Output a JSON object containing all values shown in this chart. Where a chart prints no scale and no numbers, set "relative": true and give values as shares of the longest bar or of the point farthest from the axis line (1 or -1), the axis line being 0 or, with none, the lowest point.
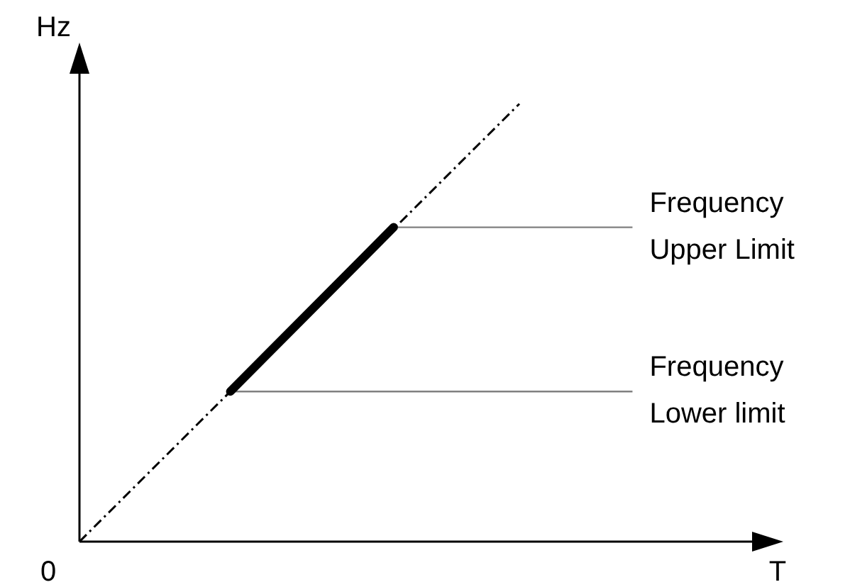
{
  "chart_data": {
    "type": "line",
    "relative": true,
    "xlabel": "T",
    "ylabel": "Hz",
    "marker": "none",
    "categories": [
      null,
      null,
      null,
      null,
      null,
      null,
      null,
      null,
      null,
      null,
      null,
      null,
      null,
      null,
      null,
      null,
      null,
      null,
      null,
      null,
      null,
      null,
      null,
      null,
      null,
      null,
      null,
      null,
      null,
      null,
      null,
      null,
      null,
      null,
      null,
      null,
      null,
      null,
      null,
      null,
      null,
      null,
      null,
      null,
      null,
      null,
      null,
      null,
      null,
      null,
      null,
      null,
      null,
      null,
      null,
      null,
      null
    ],
    "series": [
      {
        "color": "#000000",
        "line_style": "dashed",
        "values": [
          0,
          null,
          null,
          null,
          null,
          null,
          null,
          null,
          null,
          null,
          null,
          null,
          null,
          null,
          null,
          null,
          null,
          null,
          null,
          null,
          null,
          null,
          null,
          null,
          null,
          null,
          null,
          null,
          null,
          null,
          null,
          null,
          null,
          null,
          null,
          1,
          null,
          null,
          null,
          null,
          null,
          null,
          null,
          null,
          null,
          null,
          null,
          null,
          null,
          null,
          null,
          null,
          null,
          null,
          null,
          null,
          null
        ]
      },
      {
        "color": "#000000",
        "line_style": "solid",
        "values": [
          null,
          null,
          null,
          null,
          null,
          null,
          null,
          null,
          null,
          null,
          null,
          null,
          0.343,
          null,
          null,
          null,
          null,
          null,
          null,
          null,
          null,
          null,
          null,
          null,
          null,
          0.718,
          null,
          null,
          null,
          null,
          null,
          null,
          null,
          null,
          null,
          null,
          null,
          null,
          null,
          null,
          null,
          null,
          null,
          null,
          null,
          null,
          null,
          null,
          null,
          null,
          null,
          null,
          null,
          null,
          null,
          null,
          null
        ]
      },
      {
        "name": "Frequency\nUpper Limit",
        "color": "#808080",
        "line_style": "solid",
        "values": [
          null,
          null,
          null,
          null,
          null,
          null,
          null,
          null,
          null,
          null,
          null,
          null,
          null,
          null,
          null,
          null,
          null,
          null,
          null,
          null,
          null,
          null,
          null,
          null,
          null,
          0.718,
          null,
          null,
          null,
          null,
          null,
          null,
          null,
          null,
          null,
          null,
          null,
          null,
          null,
          null,
          null,
          null,
          null,
          null,
          0.718,
          null,
          null,
          null,
          null,
          null,
          null,
          null,
          null,
          null,
          null,
          null,
          null
        ]
      },
      {
        "name": "Frequency\nLower limit",
        "color": "#808080",
        "line_style": "solid",
        "values": [
          null,
          null,
          null,
          null,
          null,
          null,
          null,
          null,
          null,
          null,
          null,
          null,
          0.343,
          null,
          null,
          null,
          null,
          null,
          null,
          null,
          null,
          null,
          null,
          null,
          null,
          null,
          null,
          null,
          null,
          null,
          null,
          null,
          null,
          null,
          null,
          null,
          null,
          null,
          null,
          null,
          null,
          null,
          null,
          null,
          0.343,
          null,
          null,
          null,
          null,
          null,
          null,
          null,
          null,
          null,
          null,
          null,
          null
        ]
      }
    ],
    "annotations": [
      "0"
    ]
  }
}
